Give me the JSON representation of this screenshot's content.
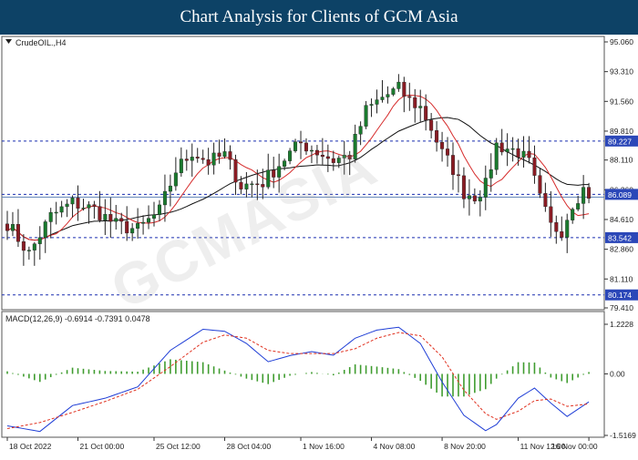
{
  "header": {
    "title": "Chart Analysis for Clients of GCM Asia"
  },
  "watermark_text": "GCMASIA",
  "colors": {
    "bull": "#1a7a2e",
    "bear": "#8a1c24",
    "ma_fast": "#d62b2b",
    "ma_slow": "#111111",
    "level_line": "#1a2fb0",
    "price_line": "#5b7fb5",
    "macd_line": "#1f3ed6",
    "macd_signal": "#e0301e",
    "macd_hist": "#3f9c2f"
  },
  "chart_data": [
    {
      "type": "candlestick",
      "symbol_label": "CrudeOIL.,H4",
      "y_ticks": [
        "95.060",
        "93.310",
        "91.560",
        "89.810",
        "88.110",
        "86.360",
        "84.610",
        "82.860",
        "81.110",
        "79.410"
      ],
      "ylim": [
        79.41,
        95.06
      ],
      "levels": [
        {
          "label": "89.227",
          "value": 89.227
        },
        {
          "label": "86.089",
          "value": 86.089
        },
        {
          "label": "83.542",
          "value": 83.542
        },
        {
          "label": "80.174",
          "value": 80.174
        }
      ],
      "current_price": 86.089,
      "x_ticks": [
        "18 Oct 2022",
        "21 Oct 00:00",
        "25 Oct 12:00",
        "28 Oct 04:00",
        "1 Nov 16:00",
        "4 Nov 08:00",
        "8 Nov 20:00",
        "11 Nov 12:00",
        "16 Nov 00:00"
      ],
      "anchors": [
        [
          0,
          84.4
        ],
        [
          4,
          82.6
        ],
        [
          8,
          84.8
        ],
        [
          12,
          85.6
        ],
        [
          16,
          85.2
        ],
        [
          20,
          84.3
        ],
        [
          24,
          84.0
        ],
        [
          28,
          85.1
        ],
        [
          31,
          87.5
        ],
        [
          34,
          88.6
        ],
        [
          37,
          88.0
        ],
        [
          40,
          88.4
        ],
        [
          43,
          86.6
        ],
        [
          47,
          86.8
        ],
        [
          51,
          88.2
        ],
        [
          54,
          89.1
        ],
        [
          57,
          88.6
        ],
        [
          60,
          88.1
        ],
        [
          63,
          88.4
        ],
        [
          66,
          91.0
        ],
        [
          69,
          91.8
        ],
        [
          72,
          92.3
        ],
        [
          74,
          91.6
        ],
        [
          76,
          91.2
        ],
        [
          78,
          90.0
        ],
        [
          80,
          88.5
        ],
        [
          82,
          87.6
        ],
        [
          84,
          86.2
        ],
        [
          86,
          86.0
        ],
        [
          88,
          86.6
        ],
        [
          90,
          89.0
        ],
        [
          92,
          88.8
        ],
        [
          94,
          88.6
        ],
        [
          96,
          87.9
        ],
        [
          98,
          85.8
        ],
        [
          100,
          84.2
        ],
        [
          102,
          84.0
        ],
        [
          104,
          85.6
        ],
        [
          106,
          86.4
        ],
        [
          107,
          86.1
        ]
      ],
      "last_candle_index": 107
    },
    {
      "type": "macd",
      "label": "MACD(12,26,9) -0.6914 -0.7391 0.0478",
      "y_ticks": [
        "1.2228",
        "0.00",
        "-1.5169"
      ],
      "ylim": [
        -1.5169,
        1.2228
      ],
      "macd_anchors": [
        [
          0,
          -1.28
        ],
        [
          6,
          -1.42
        ],
        [
          12,
          -0.78
        ],
        [
          18,
          -0.6
        ],
        [
          24,
          -0.32
        ],
        [
          30,
          0.58
        ],
        [
          36,
          1.1
        ],
        [
          40,
          1.05
        ],
        [
          44,
          0.75
        ],
        [
          48,
          0.3
        ],
        [
          52,
          0.45
        ],
        [
          56,
          0.55
        ],
        [
          60,
          0.46
        ],
        [
          64,
          0.88
        ],
        [
          68,
          1.08
        ],
        [
          72,
          1.15
        ],
        [
          76,
          0.75
        ],
        [
          80,
          -0.2
        ],
        [
          84,
          -1.02
        ],
        [
          88,
          -1.4
        ],
        [
          90,
          -1.25
        ],
        [
          94,
          -0.6
        ],
        [
          97,
          -0.35
        ],
        [
          100,
          -0.72
        ],
        [
          103,
          -1.05
        ],
        [
          107,
          -0.69
        ]
      ],
      "signal_anchors": [
        [
          0,
          -1.35
        ],
        [
          6,
          -1.2
        ],
        [
          12,
          -0.95
        ],
        [
          18,
          -0.68
        ],
        [
          24,
          -0.38
        ],
        [
          30,
          0.18
        ],
        [
          36,
          0.78
        ],
        [
          40,
          0.96
        ],
        [
          44,
          0.88
        ],
        [
          48,
          0.58
        ],
        [
          52,
          0.5
        ],
        [
          56,
          0.5
        ],
        [
          60,
          0.5
        ],
        [
          64,
          0.62
        ],
        [
          68,
          0.88
        ],
        [
          72,
          1.02
        ],
        [
          76,
          0.94
        ],
        [
          80,
          0.42
        ],
        [
          84,
          -0.4
        ],
        [
          88,
          -0.98
        ],
        [
          90,
          -1.12
        ],
        [
          94,
          -0.92
        ],
        [
          97,
          -0.66
        ],
        [
          100,
          -0.62
        ],
        [
          103,
          -0.8
        ],
        [
          107,
          -0.74
        ]
      ]
    }
  ]
}
